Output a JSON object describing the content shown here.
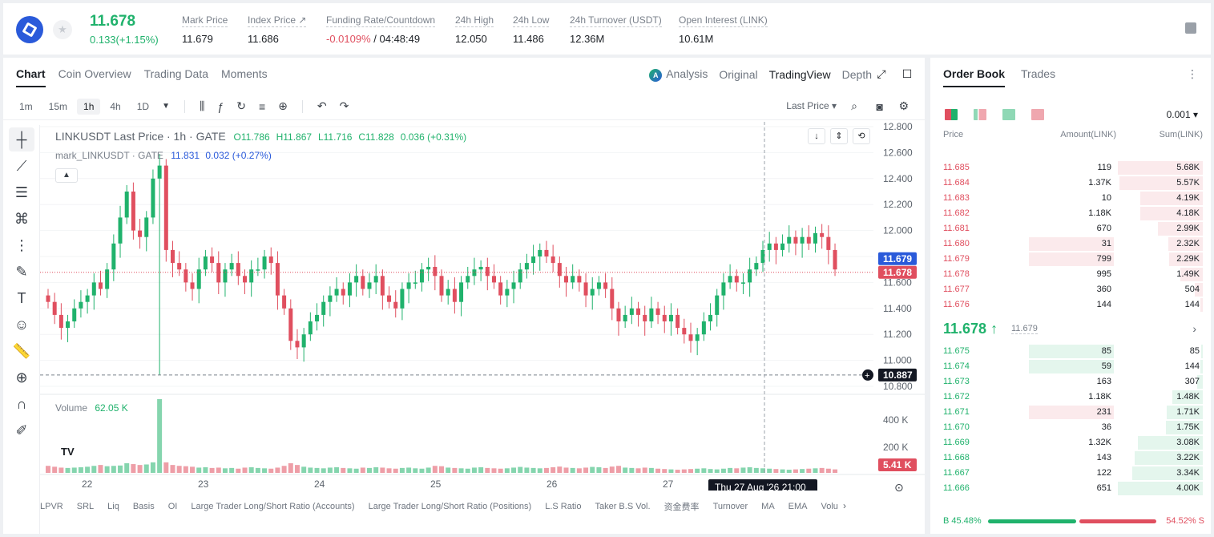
{
  "header": {
    "last_price": "11.678",
    "change": "0.133(+1.15%)",
    "stats": [
      {
        "label": "Mark Price",
        "value": "11.679"
      },
      {
        "label": "Index Price ↗",
        "value": "11.686"
      },
      {
        "label": "Funding Rate/Countdown",
        "value_red": "-0.0109%",
        "value": " / 04:48:49"
      },
      {
        "label": "24h High",
        "value": "12.050"
      },
      {
        "label": "24h Low",
        "value": "11.486"
      },
      {
        "label": "24h Turnover (USDT)",
        "value": "12.36M"
      },
      {
        "label": "Open Interest (LINK)",
        "value": "10.61M"
      }
    ]
  },
  "chart_tabs": [
    "Chart",
    "Coin Overview",
    "Trading Data",
    "Moments"
  ],
  "view_tabs": [
    "Analysis",
    "Original",
    "TradingView",
    "Depth"
  ],
  "intervals": [
    "1m",
    "15m",
    "1h",
    "4h",
    "1D"
  ],
  "price_type": "Last Price",
  "legend": {
    "title": "LINKUSDT Last Price · 1h · GATE",
    "o": "O11.786",
    "h": "H11.867",
    "l": "L11.716",
    "c": "C11.828",
    "chg": "0.036 (+0.31%)",
    "mark": "mark_LINKUSDT · GATE",
    "mark_val": "11.831",
    "mark_chg": "0.032 (+0.27%)",
    "volume_label": "Volume",
    "volume_val": "62.05 K"
  },
  "chart_data": {
    "type": "candlestick",
    "y_ticks": [
      "12.800",
      "12.600",
      "12.400",
      "12.200",
      "12.000",
      "11.800",
      "11.600",
      "11.400",
      "11.200",
      "11.000",
      "10.800"
    ],
    "vol_ticks": [
      "400 K",
      "200 K"
    ],
    "x_ticks": [
      "22",
      "23",
      "24",
      "25",
      "26",
      "27"
    ],
    "mark_price_label": "11.679",
    "last_price_label": "11.678",
    "crosshair_price_label": "10.887",
    "crosshair_time_label": "Thu 27 Aug '26   21:00",
    "volume_last_label": "5.41 K",
    "ylim": [
      10.8,
      12.8
    ],
    "close_path": [
      11.45,
      11.35,
      11.25,
      11.3,
      11.4,
      11.45,
      11.5,
      11.6,
      11.55,
      11.7,
      11.9,
      12.1,
      12.3,
      12.0,
      11.95,
      12.1,
      12.4,
      12.5,
      11.85,
      11.75,
      11.7,
      11.6,
      11.55,
      11.7,
      11.8,
      11.75,
      11.6,
      11.7,
      11.75,
      11.65,
      11.6,
      11.7,
      11.7,
      11.8,
      11.75,
      11.5,
      11.4,
      11.15,
      11.1,
      11.2,
      11.3,
      11.35,
      11.45,
      11.5,
      11.55,
      11.5,
      11.6,
      11.65,
      11.55,
      11.6,
      11.65,
      11.5,
      11.45,
      11.4,
      11.55,
      11.6,
      11.6,
      11.7,
      11.72,
      11.65,
      11.5,
      11.55,
      11.45,
      11.6,
      11.65,
      11.7,
      11.72,
      11.65,
      11.6,
      11.5,
      11.55,
      11.6,
      11.7,
      11.75,
      11.8,
      11.85,
      11.8,
      11.75,
      11.65,
      11.6,
      11.65,
      11.6,
      11.5,
      11.55,
      11.6,
      11.55,
      11.4,
      11.3,
      11.35,
      11.4,
      11.35,
      11.3,
      11.4,
      11.35,
      11.3,
      11.35,
      11.25,
      11.2,
      11.15,
      11.2,
      11.3,
      11.35,
      11.5,
      11.6,
      11.65,
      11.6,
      11.6,
      11.7,
      11.75,
      11.85,
      11.9,
      11.85,
      11.9,
      11.95,
      11.9,
      11.95,
      11.9,
      11.98,
      11.95,
      11.85,
      11.7
    ],
    "volume_path": [
      40,
      35,
      30,
      28,
      30,
      32,
      35,
      40,
      45,
      38,
      40,
      42,
      55,
      50,
      45,
      48,
      60,
      420,
      60,
      45,
      40,
      38,
      35,
      30,
      32,
      28,
      30,
      26,
      28,
      24,
      30,
      32,
      28,
      26,
      24,
      30,
      40,
      55,
      45,
      35,
      30,
      28,
      26,
      30,
      32,
      28,
      26,
      24,
      30,
      28,
      32,
      30,
      26,
      24,
      28,
      30,
      26,
      24,
      30,
      40,
      38,
      30,
      28,
      26,
      24,
      30,
      32,
      28,
      26,
      24,
      26,
      30,
      34,
      30,
      28,
      26,
      28,
      32,
      36,
      30,
      28,
      26,
      30,
      34,
      32,
      28,
      36,
      40,
      30,
      28,
      26,
      30,
      28,
      24,
      22,
      20,
      18,
      20,
      22,
      24,
      26,
      22,
      20,
      24,
      28,
      26,
      30,
      32,
      28,
      26,
      24,
      22,
      20,
      18,
      20,
      22,
      24,
      26,
      28,
      24,
      20
    ]
  },
  "bottom_items": [
    "LPVR",
    "SRL",
    "Liq",
    "Basis",
    "OI",
    "Large Trader Long/Short Ratio (Accounts)",
    "Large Trader Long/Short Ratio (Positions)",
    "L.S Ratio",
    "Taker B.S Vol.",
    "资金费率",
    "Turnover",
    "MA",
    "EMA",
    "Volu"
  ],
  "orderbook": {
    "tabs": [
      "Order Book",
      "Trades"
    ],
    "precision": "0.001",
    "headers": [
      "Price",
      "Amount(LINK)",
      "Sum(LINK)"
    ],
    "asks": [
      {
        "price": "11.685",
        "amount": "119",
        "sum": "5.68K",
        "depth": 1.0,
        "amt_hl": 0
      },
      {
        "price": "11.684",
        "amount": "1.37K",
        "sum": "5.57K",
        "depth": 0.98,
        "amt_hl": 0
      },
      {
        "price": "11.683",
        "amount": "10",
        "sum": "4.19K",
        "depth": 0.74,
        "amt_hl": 0
      },
      {
        "price": "11.682",
        "amount": "1.18K",
        "sum": "4.18K",
        "depth": 0.74,
        "amt_hl": 0
      },
      {
        "price": "11.681",
        "amount": "670",
        "sum": "2.99K",
        "depth": 0.53,
        "amt_hl": 0
      },
      {
        "price": "11.680",
        "amount": "31",
        "sum": "2.32K",
        "depth": 0.41,
        "amt_hl": 1
      },
      {
        "price": "11.679",
        "amount": "799",
        "sum": "2.29K",
        "depth": 0.4,
        "amt_hl": 1
      },
      {
        "price": "11.678",
        "amount": "995",
        "sum": "1.49K",
        "depth": 0.26,
        "amt_hl": 0
      },
      {
        "price": "11.677",
        "amount": "360",
        "sum": "504",
        "depth": 0.09,
        "amt_hl": 0
      },
      {
        "price": "11.676",
        "amount": "144",
        "sum": "144",
        "depth": 0.03,
        "amt_hl": 0
      }
    ],
    "mid_price": "11.678 ↑",
    "mid_mark": "11.679",
    "bids": [
      {
        "price": "11.675",
        "amount": "85",
        "sum": "85",
        "depth": 0.02,
        "amt_hl": 1
      },
      {
        "price": "11.674",
        "amount": "59",
        "sum": "144",
        "depth": 0.03,
        "amt_hl": 1
      },
      {
        "price": "11.673",
        "amount": "163",
        "sum": "307",
        "depth": 0.07,
        "amt_hl": 0
      },
      {
        "price": "11.672",
        "amount": "1.18K",
        "sum": "1.48K",
        "depth": 0.36,
        "amt_hl": 0
      },
      {
        "price": "11.671",
        "amount": "231",
        "sum": "1.71K",
        "depth": 0.42,
        "amt_hl": 2
      },
      {
        "price": "11.670",
        "amount": "36",
        "sum": "1.75K",
        "depth": 0.43,
        "amt_hl": 0
      },
      {
        "price": "11.669",
        "amount": "1.32K",
        "sum": "3.08K",
        "depth": 0.76,
        "amt_hl": 0
      },
      {
        "price": "11.668",
        "amount": "143",
        "sum": "3.22K",
        "depth": 0.8,
        "amt_hl": 0
      },
      {
        "price": "11.667",
        "amount": "122",
        "sum": "3.34K",
        "depth": 0.83,
        "amt_hl": 0
      },
      {
        "price": "11.666",
        "amount": "651",
        "sum": "4.00K",
        "depth": 1.0,
        "amt_hl": 0
      }
    ],
    "buy_ratio": "B 45.48%",
    "sell_ratio": "54.52% S"
  },
  "colors": {
    "up": "#20b26c",
    "down": "#e04f5f",
    "accent": "#2a5ada"
  }
}
